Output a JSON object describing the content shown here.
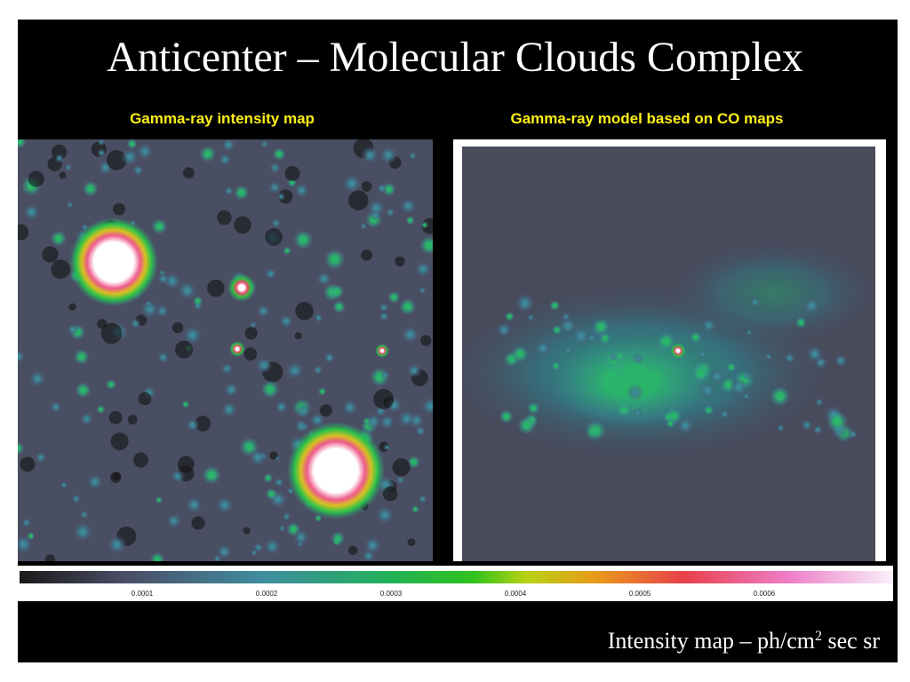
{
  "header": {
    "title": "Anticenter  –  Molecular Clouds Complex"
  },
  "panels": [
    {
      "label": "Gamma-ray intensity map"
    },
    {
      "label": "Gamma-ray model based on  CO maps"
    }
  ],
  "colorbar": {
    "ticks": [
      "0.0001",
      "0.0002",
      "0.0003",
      "0.0004",
      "0.0005",
      "0.0006"
    ]
  },
  "caption": {
    "text": "Intensity map  –  ph/cm",
    "superscript": "2",
    "suffix": " sec sr"
  }
}
